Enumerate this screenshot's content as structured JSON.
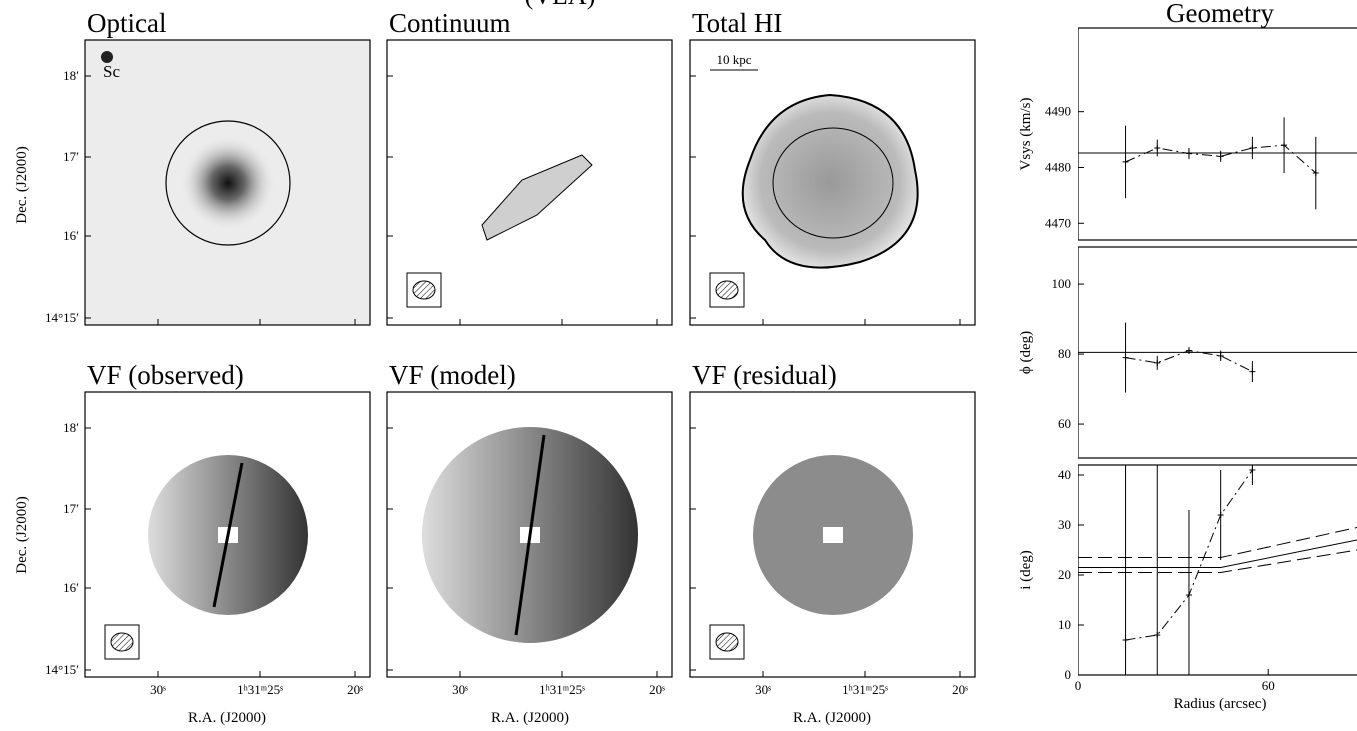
{
  "header": "(VLA)",
  "image_panels": {
    "titles": [
      "Optical",
      "Continuum",
      "Total HI",
      "VF (observed)",
      "VF (model)",
      "VF (residual)"
    ],
    "annotations": {
      "galaxy": "Sc",
      "scale": "10 kpc"
    },
    "x_label": "R.A. (J2000)",
    "y_label": "Dec. (J2000)",
    "ra_ticks": [
      "30ˢ",
      "1ʰ31ᵐ25ˢ",
      "20ˢ"
    ],
    "dec_ticks": [
      "18′",
      "17′",
      "16′",
      "14°15′"
    ]
  },
  "chart_data": [
    {
      "type": "errorbar",
      "title": "Geometry",
      "ylabel": "Vsys (km/s)",
      "x": [
        15,
        25,
        35,
        45,
        55,
        65,
        75
      ],
      "values": [
        4481,
        4483.5,
        4482.5,
        4482,
        4483.5,
        4484,
        4479
      ],
      "errors": [
        6.5,
        1.5,
        1,
        1,
        2,
        5,
        6.5
      ],
      "reference": 4482.6,
      "xlim": [
        0,
        88
      ],
      "ylim": [
        4467,
        4505
      ],
      "yticks": [
        4470,
        4480,
        4490
      ]
    },
    {
      "type": "errorbar",
      "ylabel": "ϕ (deg)",
      "x": [
        15,
        25,
        35,
        45,
        55
      ],
      "values": [
        79,
        77.5,
        81,
        79.5,
        75
      ],
      "errors": [
        10,
        2,
        1,
        1.5,
        3
      ],
      "reference": 80.5,
      "xlim": [
        0,
        88
      ],
      "ylim": [
        50.3,
        110.6
      ],
      "yticks": [
        60,
        80,
        100
      ]
    },
    {
      "type": "errorbar",
      "ylabel": "i (deg)",
      "xlabel": "Radius (arcsec)",
      "x": [
        15,
        25,
        35,
        45,
        55
      ],
      "values": [
        7,
        8,
        16,
        32,
        41
      ],
      "errors": [
        40,
        40,
        17,
        9,
        3
      ],
      "model_lines": [
        {
          "x": [
            0,
            45,
            88
          ],
          "values": [
            21.5,
            21.5,
            27
          ],
          "dashed": false
        },
        {
          "x": [
            0,
            45,
            88
          ],
          "values": [
            23.5,
            23.5,
            29.5
          ],
          "dashed": true
        },
        {
          "x": [
            0,
            45,
            88
          ],
          "values": [
            20.5,
            20.5,
            25
          ],
          "dashed": true
        }
      ],
      "xlim": [
        0,
        88
      ],
      "ylim": [
        0,
        42
      ],
      "yticks": [
        0,
        10,
        20,
        30,
        40
      ],
      "xticks": [
        0,
        60
      ]
    }
  ]
}
